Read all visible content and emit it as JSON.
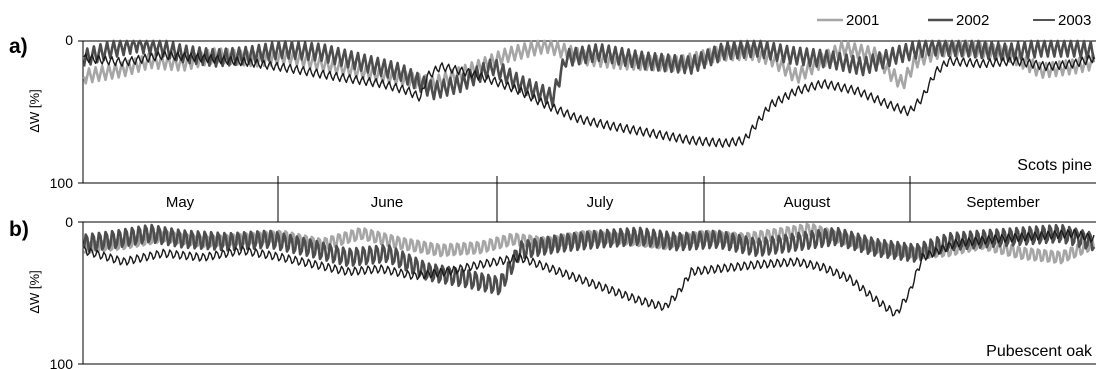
{
  "chart_data": {
    "type": "line",
    "months": [
      "May",
      "June",
      "July",
      "August",
      "September"
    ],
    "legend": [
      {
        "name": "2001",
        "color": "#a6a6a6"
      },
      {
        "name": "2002",
        "color": "#4d4d4d"
      },
      {
        "name": "2003",
        "color": "#1a1a1a"
      }
    ],
    "x_axis": {
      "unit": "day of season",
      "start": "1 May",
      "range": [
        0,
        153
      ]
    },
    "panels": [
      {
        "letter": "a)",
        "species": "Scots pine",
        "ylabel": "ΔW [%]",
        "yticks": [
          "0",
          "100"
        ],
        "ylim": [
          0,
          100
        ],
        "y_inverted": true,
        "series": [
          {
            "name": "2001",
            "color": "#a6a6a6",
            "stroke": 2.6,
            "diurnal_amplitude": 5,
            "points": [
              [
                0,
                25
              ],
              [
                6,
                20
              ],
              [
                10,
                14
              ],
              [
                15,
                16
              ],
              [
                20,
                10
              ],
              [
                26,
                13
              ],
              [
                31,
                11
              ],
              [
                38,
                18
              ],
              [
                45,
                24
              ],
              [
                53,
                30
              ],
              [
                60,
                18
              ],
              [
                64,
                10
              ],
              [
                70,
                3
              ],
              [
                76,
                12
              ],
              [
                82,
                15
              ],
              [
                90,
                16
              ],
              [
                96,
                9
              ],
              [
                101,
                8
              ],
              [
                104,
                12
              ],
              [
                108,
                25
              ],
              [
                111,
                16
              ],
              [
                115,
                5
              ],
              [
                120,
                10
              ],
              [
                122,
                22
              ],
              [
                124,
                30
              ],
              [
                126,
                14
              ],
              [
                130,
                6
              ],
              [
                134,
                5
              ],
              [
                140,
                9
              ],
              [
                145,
                21
              ],
              [
                150,
                18
              ],
              [
                153,
                15
              ]
            ]
          },
          {
            "name": "2002",
            "color": "#4d4d4d",
            "stroke": 2.6,
            "diurnal_amplitude": 6,
            "points": [
              [
                0,
                12
              ],
              [
                4,
                6
              ],
              [
                8,
                2
              ],
              [
                12,
                5
              ],
              [
                15,
                9
              ],
              [
                20,
                12
              ],
              [
                25,
                10
              ],
              [
                30,
                6
              ],
              [
                36,
                8
              ],
              [
                42,
                15
              ],
              [
                48,
                22
              ],
              [
                53,
                35
              ],
              [
                57,
                30
              ],
              [
                62,
                18
              ],
              [
                66,
                30
              ],
              [
                71,
                40
              ],
              [
                73,
                12
              ],
              [
                78,
                8
              ],
              [
                85,
                14
              ],
              [
                92,
                17
              ],
              [
                97,
                7
              ],
              [
                102,
                5
              ],
              [
                107,
                10
              ],
              [
                113,
                13
              ],
              [
                118,
                18
              ],
              [
                123,
                10
              ],
              [
                128,
                4
              ],
              [
                134,
                5
              ],
              [
                140,
                8
              ],
              [
                145,
                5
              ],
              [
                150,
                5
              ],
              [
                153,
                7
              ]
            ]
          },
          {
            "name": "2003",
            "color": "#1a1a1a",
            "stroke": 1.4,
            "diurnal_amplitude": 3,
            "points": [
              [
                0,
                12
              ],
              [
                6,
                15
              ],
              [
                12,
                10
              ],
              [
                18,
                12
              ],
              [
                25,
                15
              ],
              [
                32,
                20
              ],
              [
                38,
                25
              ],
              [
                45,
                30
              ],
              [
                49,
                35
              ],
              [
                51,
                40
              ],
              [
                52,
                25
              ],
              [
                54,
                18
              ],
              [
                58,
                22
              ],
              [
                62,
                28
              ],
              [
                66,
                35
              ],
              [
                70,
                45
              ],
              [
                75,
                55
              ],
              [
                80,
                60
              ],
              [
                86,
                65
              ],
              [
                92,
                70
              ],
              [
                97,
                72
              ],
              [
                100,
                70
              ],
              [
                104,
                45
              ],
              [
                108,
                35
              ],
              [
                112,
                30
              ],
              [
                117,
                35
              ],
              [
                122,
                45
              ],
              [
                125,
                50
              ],
              [
                127,
                40
              ],
              [
                129,
                22
              ],
              [
                131,
                14
              ],
              [
                136,
                16
              ],
              [
                141,
                14
              ],
              [
                146,
                18
              ],
              [
                150,
                16
              ],
              [
                153,
                12
              ]
            ]
          }
        ]
      },
      {
        "letter": "b)",
        "species": "Pubescent oak",
        "ylabel": "ΔW [%]",
        "yticks": [
          "0",
          "100"
        ],
        "ylim": [
          0,
          100
        ],
        "y_inverted": true,
        "series": [
          {
            "name": "2001",
            "color": "#a6a6a6",
            "stroke": 2.6,
            "diurnal_amplitude": 5,
            "points": [
              [
                0,
                18
              ],
              [
                6,
                15
              ],
              [
                12,
                10
              ],
              [
                18,
                14
              ],
              [
                24,
                12
              ],
              [
                30,
                10
              ],
              [
                36,
                16
              ],
              [
                42,
                8
              ],
              [
                48,
                15
              ],
              [
                54,
                20
              ],
              [
                60,
                18
              ],
              [
                65,
                12
              ],
              [
                70,
                15
              ],
              [
                76,
                10
              ],
              [
                82,
                12
              ],
              [
                88,
                15
              ],
              [
                94,
                10
              ],
              [
                100,
                12
              ],
              [
                106,
                8
              ],
              [
                110,
                5
              ],
              [
                115,
                12
              ],
              [
                120,
                18
              ],
              [
                126,
                22
              ],
              [
                131,
                20
              ],
              [
                136,
                15
              ],
              [
                142,
                22
              ],
              [
                148,
                25
              ],
              [
                153,
                15
              ]
            ]
          },
          {
            "name": "2002",
            "color": "#4d4d4d",
            "stroke": 2.6,
            "diurnal_amplitude": 7,
            "points": [
              [
                0,
                15
              ],
              [
                5,
                12
              ],
              [
                10,
                8
              ],
              [
                15,
                12
              ],
              [
                22,
                14
              ],
              [
                28,
                12
              ],
              [
                34,
                18
              ],
              [
                40,
                25
              ],
              [
                46,
                22
              ],
              [
                52,
                35
              ],
              [
                58,
                40
              ],
              [
                63,
                45
              ],
              [
                66,
                20
              ],
              [
                72,
                15
              ],
              [
                78,
                12
              ],
              [
                84,
                10
              ],
              [
                90,
                14
              ],
              [
                96,
                12
              ],
              [
                102,
                18
              ],
              [
                108,
                14
              ],
              [
                114,
                10
              ],
              [
                120,
                18
              ],
              [
                126,
                22
              ],
              [
                131,
                14
              ],
              [
                136,
                12
              ],
              [
                142,
                10
              ],
              [
                148,
                8
              ],
              [
                153,
                14
              ]
            ]
          },
          {
            "name": "2003",
            "color": "#1a1a1a",
            "stroke": 1.4,
            "diurnal_amplitude": 3,
            "points": [
              [
                0,
                20
              ],
              [
                6,
                28
              ],
              [
                12,
                22
              ],
              [
                18,
                25
              ],
              [
                24,
                20
              ],
              [
                30,
                25
              ],
              [
                35,
                30
              ],
              [
                40,
                35
              ],
              [
                45,
                33
              ],
              [
                50,
                38
              ],
              [
                55,
                35
              ],
              [
                60,
                30
              ],
              [
                66,
                25
              ],
              [
                72,
                35
              ],
              [
                78,
                45
              ],
              [
                84,
                55
              ],
              [
                88,
                60
              ],
              [
                90,
                50
              ],
              [
                92,
                35
              ],
              [
                96,
                33
              ],
              [
                102,
                30
              ],
              [
                108,
                28
              ],
              [
                112,
                32
              ],
              [
                116,
                40
              ],
              [
                120,
                55
              ],
              [
                123,
                65
              ],
              [
                125,
                50
              ],
              [
                127,
                25
              ],
              [
                132,
                15
              ],
              [
                138,
                12
              ],
              [
                144,
                10
              ],
              [
                150,
                8
              ],
              [
                153,
                12
              ]
            ]
          }
        ]
      }
    ]
  }
}
